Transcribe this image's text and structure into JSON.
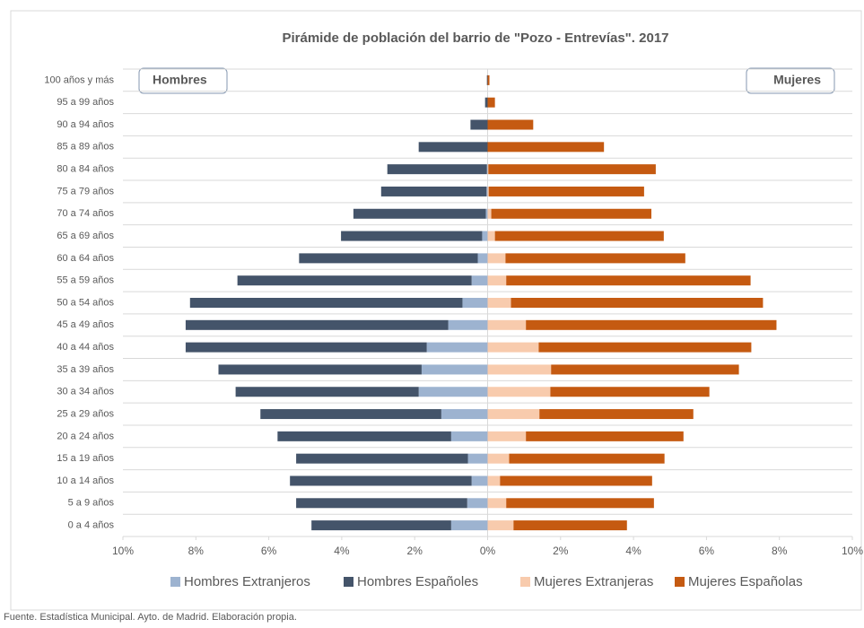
{
  "chart_data": {
    "type": "pyramid",
    "title": "Pirámide de población del barrio de \"Pozo - Entrevías\". 2017",
    "annotations": [
      "Hombres",
      "Mujeres"
    ],
    "source": "Fuente. Estadística Municipal. Ayto. de Madrid. Elaboración propia.",
    "categories": [
      "100 años y más",
      "95 a 99 años",
      "90 a 94 años",
      "85 a 89 años",
      "80 a 84 años",
      "75 a 79 años",
      "70 a 74 años",
      "65 a 69 años",
      "60 a 64 años",
      "55 a 59 años",
      "50 a 54 años",
      "45 a 49 años",
      "40 a 44 años",
      "35 a 39 años",
      "30 a 34 años",
      "25 a 29 años",
      "20 a 24 años",
      "15 a 19 años",
      "10 a 14 años",
      "5 a 9 años",
      "0 a 4 años"
    ],
    "series": [
      {
        "name": "Hombres Extranjeros",
        "color": "#9db3d0",
        "side": "left",
        "values": [
          0,
          0,
          0,
          0,
          -0.02,
          -0.03,
          -0.05,
          -0.15,
          -0.27,
          -0.44,
          -0.69,
          -1.08,
          -1.67,
          -1.81,
          -1.89,
          -1.27,
          -1.0,
          -0.54,
          -0.44,
          -0.56,
          -1.0
        ]
      },
      {
        "name": "Hombres Españoles",
        "color": "#44546a",
        "side": "left",
        "values": [
          -0.02,
          -0.07,
          -0.47,
          -1.89,
          -2.73,
          -2.89,
          -3.63,
          -3.87,
          -4.9,
          -6.42,
          -7.47,
          -7.2,
          -6.61,
          -5.57,
          -5.02,
          -4.96,
          -4.76,
          -4.71,
          -4.98,
          -4.69,
          -3.83
        ]
      },
      {
        "name": "Mujeres Extranjeras",
        "color": "#f8cbad",
        "side": "right",
        "values": [
          0,
          0,
          0,
          0,
          0.02,
          0.03,
          0.1,
          0.2,
          0.49,
          0.51,
          0.64,
          1.05,
          1.4,
          1.74,
          1.72,
          1.42,
          1.05,
          0.59,
          0.34,
          0.51,
          0.71
        ]
      },
      {
        "name": "Mujeres Españolas",
        "color": "#c55a11",
        "side": "right",
        "values": [
          0.05,
          0.2,
          1.25,
          3.19,
          4.59,
          4.26,
          4.39,
          4.63,
          4.93,
          6.7,
          6.91,
          6.87,
          5.83,
          5.15,
          4.36,
          4.22,
          4.32,
          4.26,
          4.17,
          4.05,
          3.11
        ]
      }
    ],
    "xlim": [
      -10,
      10
    ],
    "xticks": [
      {
        "value": -10,
        "label": "10%"
      },
      {
        "value": -8,
        "label": "8%"
      },
      {
        "value": -6,
        "label": "6%"
      },
      {
        "value": -4,
        "label": "4%"
      },
      {
        "value": -2,
        "label": "2%"
      },
      {
        "value": 0,
        "label": "0%"
      },
      {
        "value": 2,
        "label": "2%"
      },
      {
        "value": 4,
        "label": "4%"
      },
      {
        "value": 6,
        "label": "6%"
      },
      {
        "value": 8,
        "label": "8%"
      },
      {
        "value": 10,
        "label": "10%"
      }
    ],
    "grid": false,
    "legend": "bottom"
  }
}
